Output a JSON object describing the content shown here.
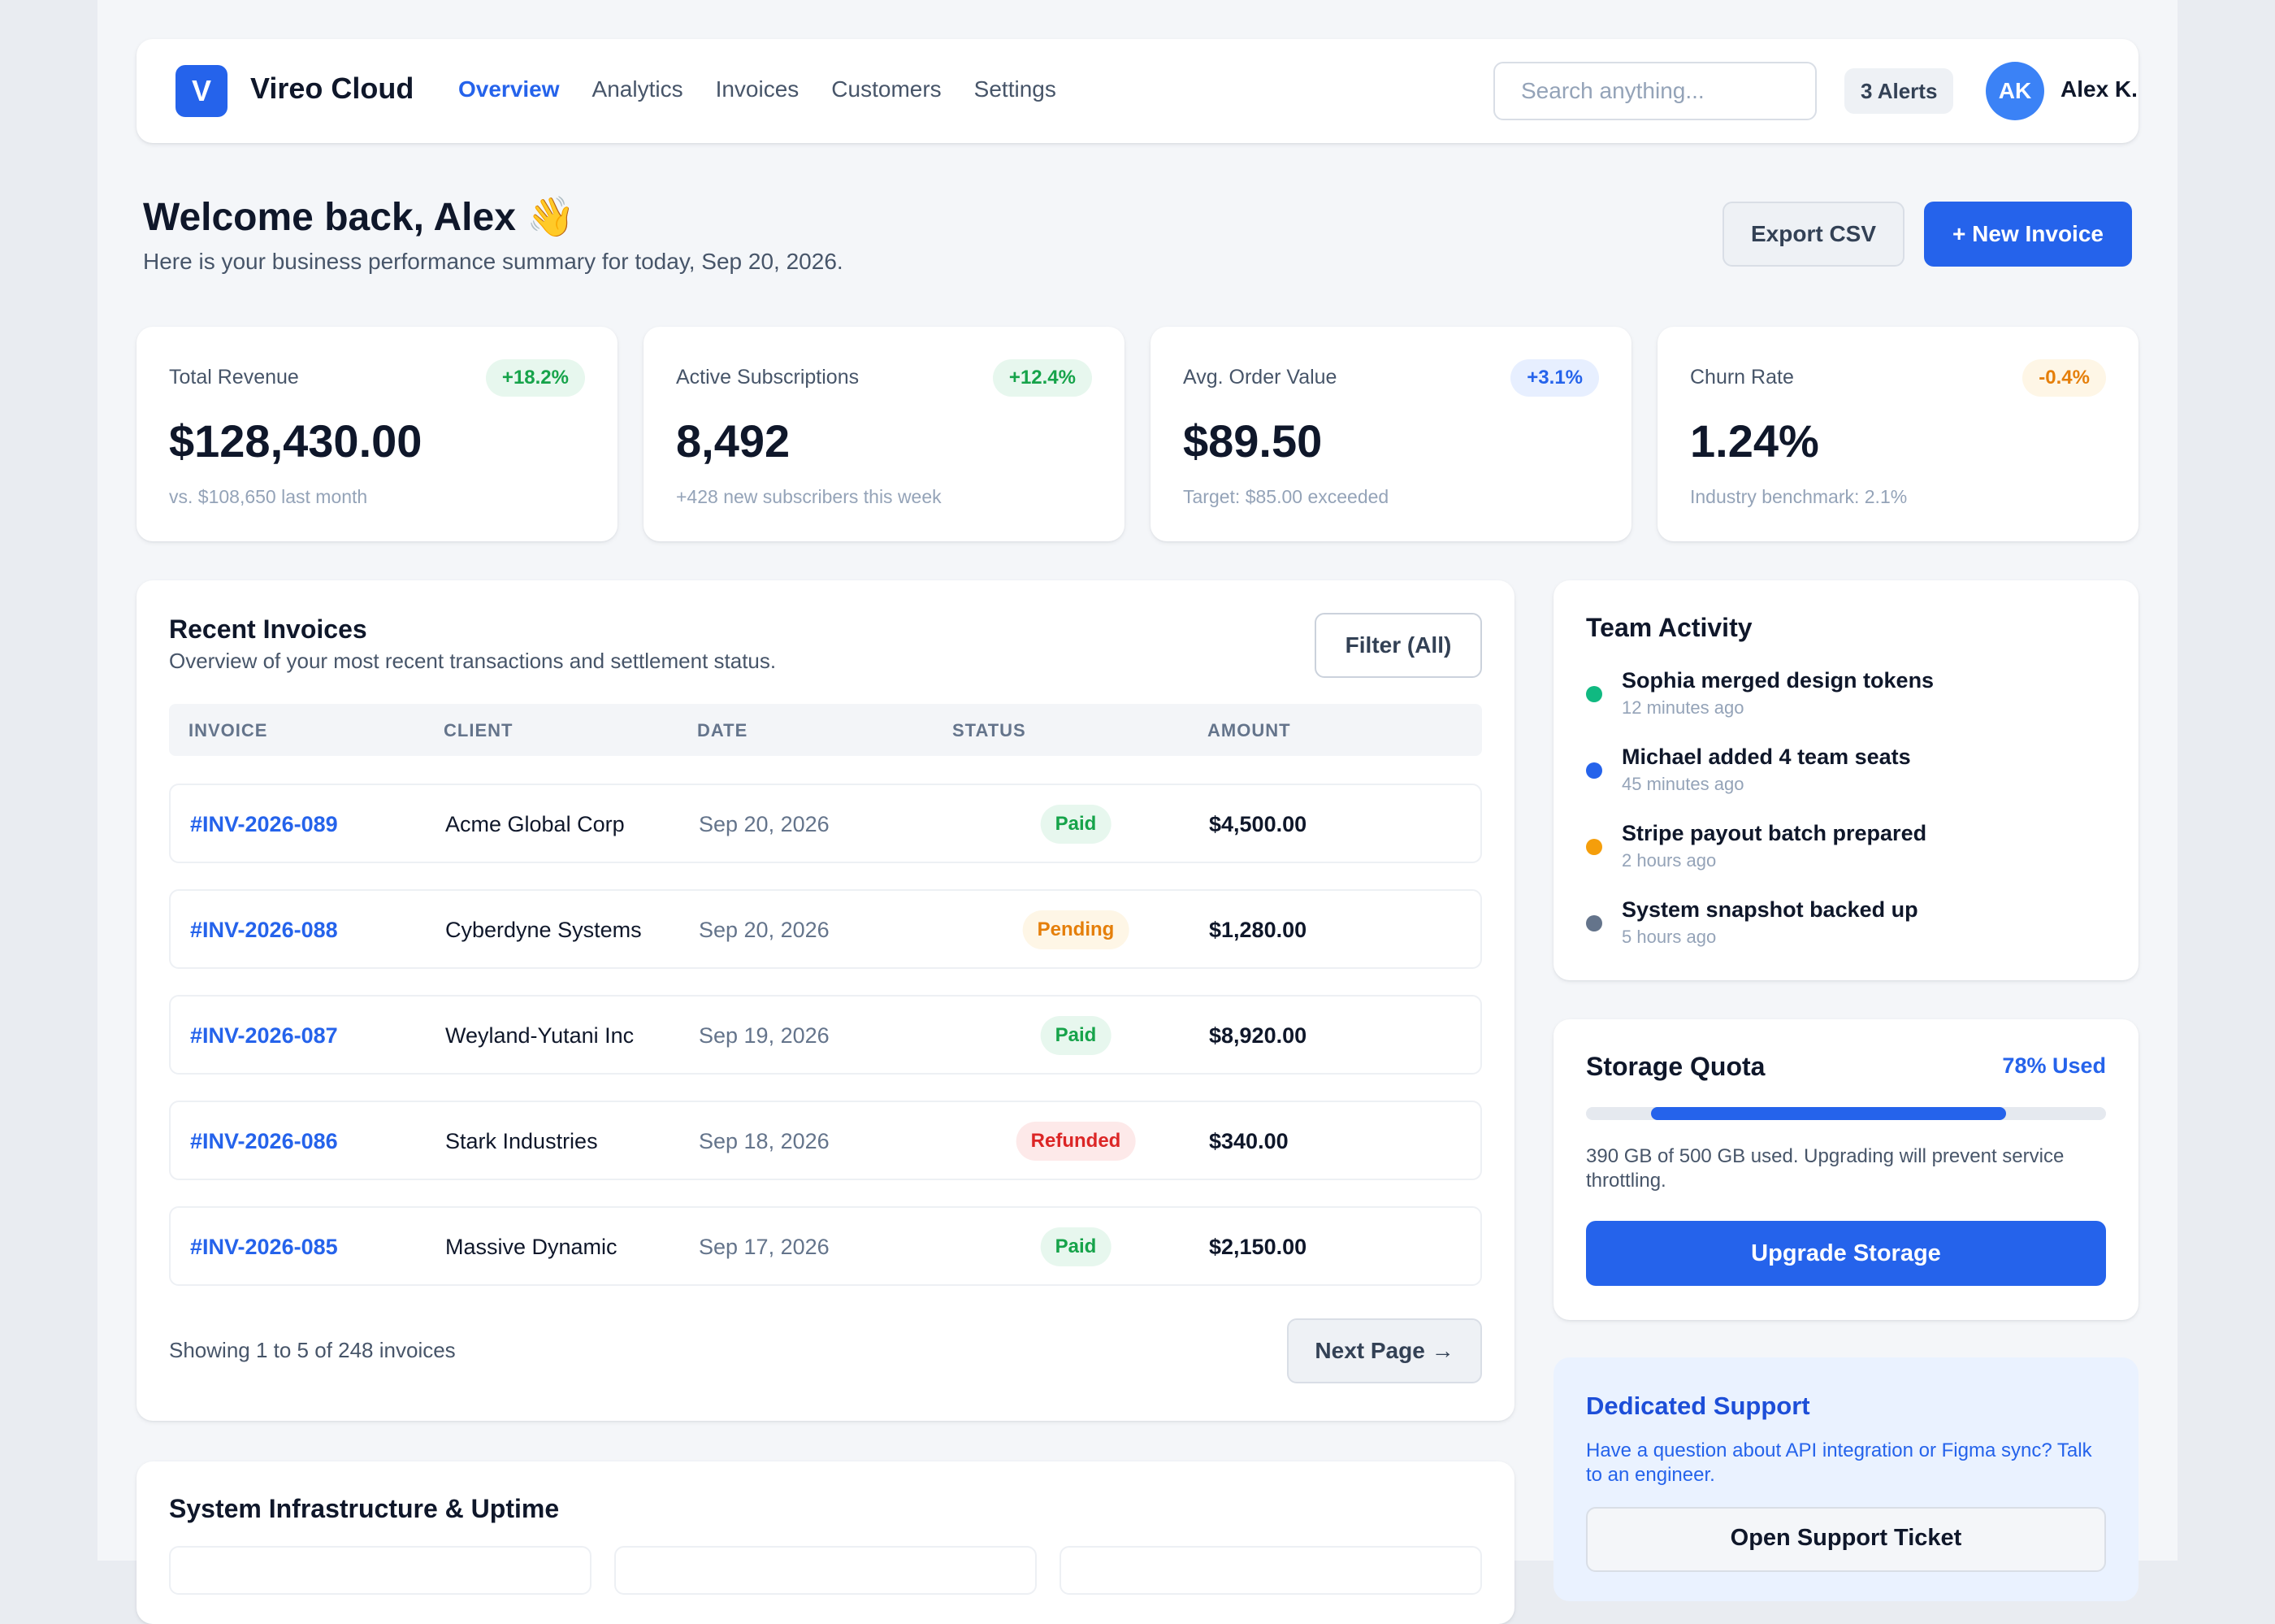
{
  "brand": {
    "logo_letter": "V",
    "name": "Vireo Cloud",
    "accent": "#2563eb"
  },
  "nav": [
    {
      "label": "Overview",
      "active": true
    },
    {
      "label": "Analytics"
    },
    {
      "label": "Invoices"
    },
    {
      "label": "Customers"
    },
    {
      "label": "Settings"
    }
  ],
  "search": {
    "placeholder": "Search anything..."
  },
  "alerts": {
    "label": "3 Alerts"
  },
  "user": {
    "initials": "AK",
    "name": "Alex K."
  },
  "welcome": {
    "title": "Welcome back, Alex 👋",
    "subtitle": "Here is your business performance summary for today, Sep 20, 2026."
  },
  "actions": {
    "export_label": "Export CSV",
    "new_invoice_label": "+ New Invoice"
  },
  "stats": [
    {
      "label": "Total Revenue",
      "badge": "+18.2%",
      "value": "$128,430.00",
      "note": "vs. $108,650 last month"
    },
    {
      "label": "Active Subscriptions",
      "badge": "+12.4%",
      "value": "8,492",
      "note": "+428 new subscribers this week"
    },
    {
      "label": "Avg. Order Value",
      "badge": "+3.1%",
      "value": "$89.50",
      "note": "Target: $85.00 exceeded"
    },
    {
      "label": "Churn Rate",
      "badge": "-0.4%",
      "value": "1.24%",
      "note": "Industry benchmark: 2.1%"
    }
  ],
  "invoices": {
    "title": "Recent Invoices",
    "subtitle": "Overview of your most recent transactions and settlement status.",
    "filter_label": "Filter (All)",
    "columns": [
      "INVOICE",
      "CLIENT",
      "DATE",
      "STATUS",
      "AMOUNT"
    ],
    "rows": [
      {
        "id": "#INV-2026-089",
        "client": "Acme Global Corp",
        "date": "Sep 20, 2026",
        "status": "Paid",
        "amount": "$4,500.00"
      },
      {
        "id": "#INV-2026-088",
        "client": "Cyberdyne Systems",
        "date": "Sep 20, 2026",
        "status": "Pending",
        "amount": "$1,280.00"
      },
      {
        "id": "#INV-2026-087",
        "client": "Weyland-Yutani Inc",
        "date": "Sep 19, 2026",
        "status": "Paid",
        "amount": "$8,920.00"
      },
      {
        "id": "#INV-2026-086",
        "client": "Stark Industries",
        "date": "Sep 18, 2026",
        "status": "Refunded",
        "amount": "$340.00"
      },
      {
        "id": "#INV-2026-085",
        "client": "Massive Dynamic",
        "date": "Sep 17, 2026",
        "status": "Paid",
        "amount": "$2,150.00"
      }
    ],
    "showing": "Showing 1 to 5 of 248 invoices",
    "next_label": "Next Page →"
  },
  "infra": {
    "title": "System Infrastructure & Uptime"
  },
  "team": {
    "title": "Team Activity",
    "items": [
      {
        "title": "Sophia merged design tokens",
        "time": "12 minutes ago",
        "color": "#10b981"
      },
      {
        "title": "Michael added 4 team seats",
        "time": "45 minutes ago",
        "color": "#2563eb"
      },
      {
        "title": "Stripe payout batch prepared",
        "time": "2 hours ago",
        "color": "#f59e0b"
      },
      {
        "title": "System snapshot backed up",
        "time": "5 hours ago",
        "color": "#64748b"
      }
    ]
  },
  "storage": {
    "title": "Storage Quota",
    "used_label": "78% Used",
    "used_fraction": 0.78,
    "text": "390 GB of 500 GB used. Upgrading will prevent service throttling.",
    "button_label": "Upgrade Storage"
  },
  "support": {
    "title": "Dedicated Support",
    "text": "Have a question about API integration or Figma sync? Talk to an engineer.",
    "button_label": "Open Support Ticket"
  }
}
